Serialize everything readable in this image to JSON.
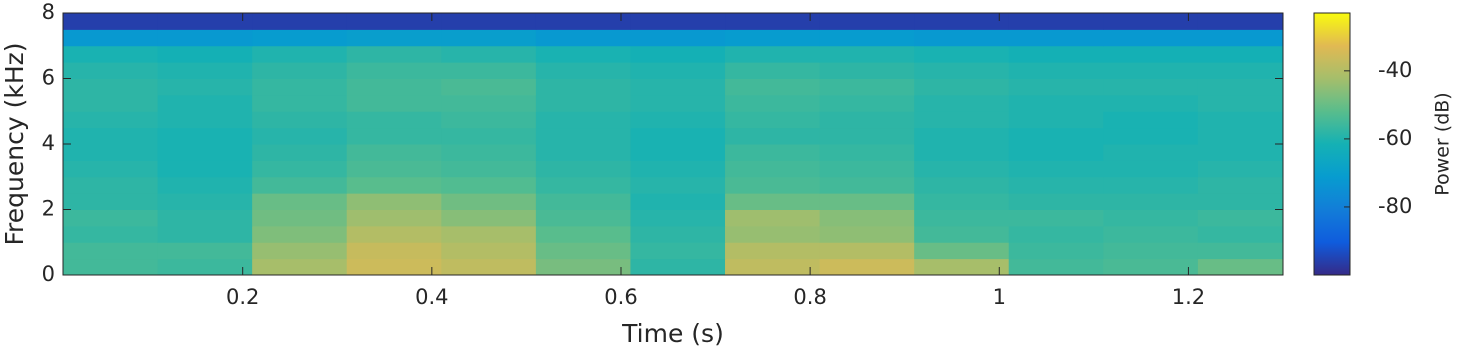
{
  "chart_data": {
    "type": "spectrogram",
    "xlabel": "Time (s)",
    "ylabel": "Frequency (kHz)",
    "xlim": [
      0.01,
      1.3
    ],
    "xticks": [
      0.2,
      0.4,
      0.6,
      0.8,
      1,
      1.2
    ],
    "ylim": [
      0,
      8
    ],
    "yticks": [
      0,
      2,
      4,
      6,
      8
    ],
    "x_edges": [
      0.01,
      0.11,
      0.21,
      0.31,
      0.41,
      0.51,
      0.61,
      0.71,
      0.81,
      0.91,
      1.01,
      1.11,
      1.21,
      1.3
    ],
    "y_edges": [
      0,
      0.5,
      1,
      1.5,
      2,
      2.5,
      3,
      3.5,
      4,
      4.5,
      5,
      5.5,
      6,
      6.5,
      7,
      7.5,
      8
    ],
    "values": [
      [
        -55,
        -56,
        -42,
        -36,
        -38,
        -48,
        -58,
        -38,
        -36,
        -42,
        -55,
        -54,
        -50
      ],
      [
        -55,
        -55,
        -44,
        -37,
        -40,
        -50,
        -57,
        -40,
        -40,
        -50,
        -56,
        -55,
        -55
      ],
      [
        -57,
        -58,
        -47,
        -40,
        -42,
        -52,
        -58,
        -44,
        -45,
        -55,
        -57,
        -56,
        -57
      ],
      [
        -56,
        -58,
        -49,
        -43,
        -46,
        -54,
        -59,
        -43,
        -46,
        -56,
        -56,
        -57,
        -56
      ],
      [
        -58,
        -59,
        -50,
        -45,
        -49,
        -55,
        -60,
        -50,
        -50,
        -57,
        -58,
        -58,
        -58
      ],
      [
        -58,
        -60,
        -55,
        -52,
        -53,
        -57,
        -59,
        -54,
        -55,
        -58,
        -59,
        -59,
        -58
      ],
      [
        -59,
        -61,
        -57,
        -54,
        -55,
        -58,
        -60,
        -55,
        -56,
        -59,
        -60,
        -60,
        -59
      ],
      [
        -60,
        -61,
        -58,
        -55,
        -56,
        -59,
        -61,
        -56,
        -57,
        -60,
        -61,
        -60,
        -60
      ],
      [
        -60,
        -61,
        -59,
        -57,
        -57,
        -59,
        -61,
        -58,
        -58,
        -60,
        -61,
        -61,
        -60
      ],
      [
        -59,
        -60,
        -58,
        -57,
        -56,
        -59,
        -60,
        -57,
        -58,
        -59,
        -60,
        -61,
        -60
      ],
      [
        -58,
        -60,
        -57,
        -55,
        -55,
        -58,
        -59,
        -56,
        -57,
        -59,
        -60,
        -60,
        -59
      ],
      [
        -58,
        -59,
        -57,
        -55,
        -54,
        -58,
        -59,
        -55,
        -56,
        -58,
        -59,
        -59,
        -59
      ],
      [
        -59,
        -60,
        -58,
        -56,
        -56,
        -59,
        -60,
        -57,
        -58,
        -59,
        -60,
        -60,
        -60
      ],
      [
        -61,
        -62,
        -60,
        -58,
        -59,
        -61,
        -62,
        -60,
        -60,
        -61,
        -62,
        -62,
        -62
      ],
      [
        -72,
        -72,
        -71,
        -70,
        -70,
        -72,
        -72,
        -71,
        -71,
        -72,
        -72,
        -72,
        -72
      ],
      [
        -96,
        -96,
        -96,
        -96,
        -96,
        -96,
        -96,
        -96,
        -96,
        -96,
        -96,
        -96,
        -96
      ]
    ],
    "colorbar_label": "Power (dB)",
    "clim": [
      -100,
      -23
    ],
    "cticks": [
      -80,
      -60,
      -40
    ]
  }
}
